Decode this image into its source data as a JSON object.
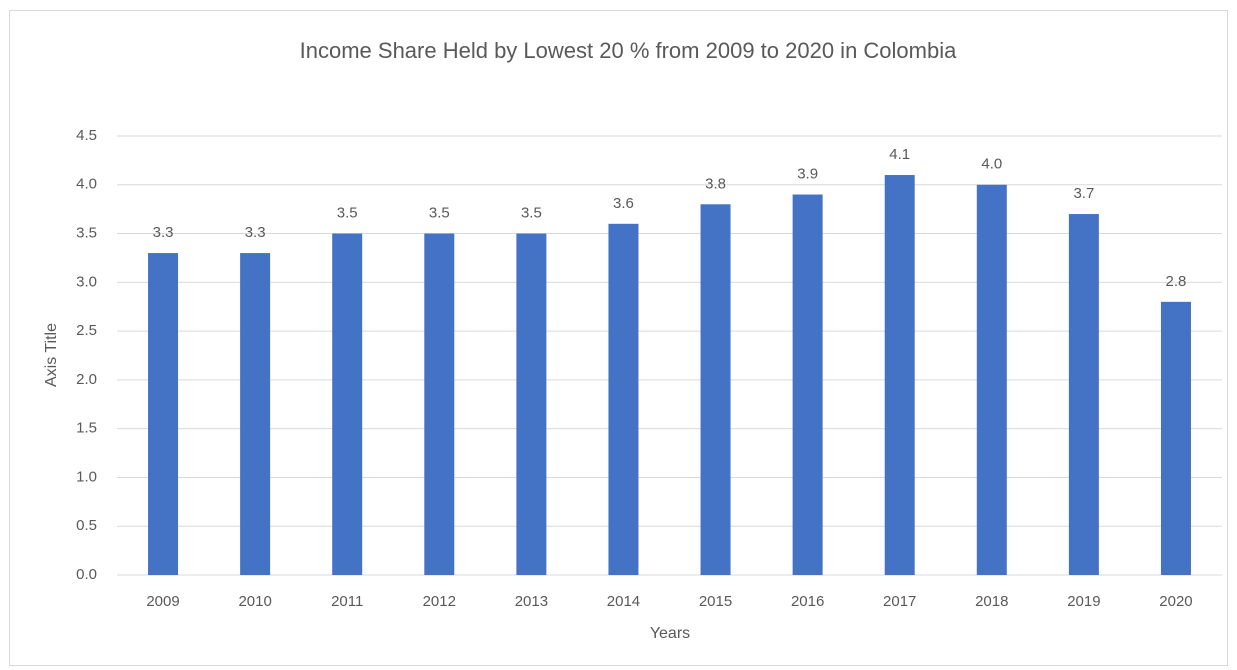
{
  "chart_data": {
    "type": "bar",
    "title": "Income Share Held by Lowest 20 % from 2009 to 2020 in Colombia",
    "x_label": "Years",
    "y_label": "Axis Title",
    "categories": [
      "2009",
      "2010",
      "2011",
      "2012",
      "2013",
      "2014",
      "2015",
      "2016",
      "2017",
      "2018",
      "2019",
      "2020"
    ],
    "values": [
      3.3,
      3.3,
      3.5,
      3.5,
      3.5,
      3.6,
      3.8,
      3.9,
      4.1,
      4.0,
      3.7,
      2.8
    ],
    "value_labels": [
      "3.3",
      "3.3",
      "3.5",
      "3.5",
      "3.5",
      "3.6",
      "3.8",
      "3.9",
      "4.1",
      "4.0",
      "3.7",
      "2.8"
    ],
    "color": "#4472c4",
    "ylim": [
      0,
      4.5
    ],
    "yticks": [
      {
        "value": 0,
        "label": "0.0"
      },
      0.5,
      {
        "value": 1,
        "label": "1.0"
      },
      1.5,
      {
        "value": 2,
        "label": "2.0"
      },
      2.5,
      {
        "value": 3,
        "label": "3.0"
      },
      3.5,
      {
        "value": 4,
        "label": "4.0"
      },
      4.5
    ],
    "grid": true
  }
}
